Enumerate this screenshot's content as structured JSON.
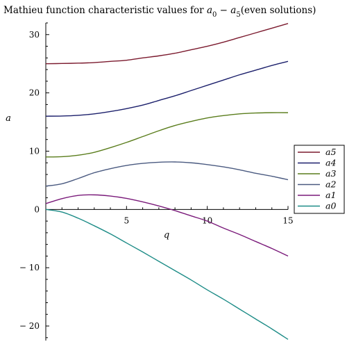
{
  "chart_data": {
    "type": "line",
    "title": {
      "prefix": "Mathieu function characteristic values for ",
      "var_a": "a",
      "sub_0": "0",
      "dash": " − ",
      "sub_5": "5",
      "suffix": "(even solutions)"
    },
    "xlabel": "q",
    "ylabel": "a",
    "xlim": [
      0,
      15
    ],
    "ylim": [
      -22.5,
      32
    ],
    "x_ticks": [
      5,
      10,
      15
    ],
    "y_ticks": [
      {
        "value": 30,
        "label": "30"
      },
      {
        "value": 20,
        "label": "20"
      },
      {
        "value": 10,
        "label": "10"
      },
      {
        "value": 0,
        "label": "0"
      },
      {
        "value": -10,
        "label": "− 10"
      },
      {
        "value": -20,
        "label": "− 20"
      }
    ],
    "grid": false,
    "legend_position": "right",
    "x": [
      0,
      1,
      2,
      3,
      4,
      5,
      6,
      7,
      8,
      9,
      10,
      11,
      12,
      13,
      14,
      15
    ],
    "series": [
      {
        "name": "a5",
        "color": "#7b1a2e",
        "values": [
          25.0,
          25.04,
          25.1,
          25.2,
          25.4,
          25.6,
          26.0,
          26.35,
          26.8,
          27.4,
          28.0,
          28.7,
          29.5,
          30.3,
          31.1,
          31.9
        ]
      },
      {
        "name": "a4",
        "color": "#1b1f6b",
        "values": [
          16.0,
          16.03,
          16.15,
          16.4,
          16.8,
          17.3,
          17.9,
          18.7,
          19.5,
          20.4,
          21.3,
          22.2,
          23.1,
          23.9,
          24.7,
          25.4
        ]
      },
      {
        "name": "a3",
        "color": "#5a7d1c",
        "values": [
          9.0,
          9.05,
          9.3,
          9.8,
          10.6,
          11.5,
          12.5,
          13.5,
          14.4,
          15.1,
          15.7,
          16.1,
          16.4,
          16.55,
          16.6,
          16.6
        ]
      },
      {
        "name": "a2",
        "color": "#4a5a80",
        "values": [
          4.0,
          4.4,
          5.3,
          6.3,
          7.0,
          7.55,
          7.9,
          8.1,
          8.15,
          8.0,
          7.7,
          7.3,
          6.8,
          6.2,
          5.7,
          5.1
        ]
      },
      {
        "name": "a1",
        "color": "#7a1a7a",
        "values": [
          1.0,
          1.85,
          2.4,
          2.5,
          2.3,
          1.9,
          1.3,
          0.6,
          -0.2,
          -1.1,
          -2.0,
          -3.2,
          -4.3,
          -5.5,
          -6.7,
          -8.0
        ]
      },
      {
        "name": "a0",
        "color": "#1d8c87",
        "values": [
          0.0,
          -0.45,
          -1.5,
          -2.8,
          -4.2,
          -5.75,
          -7.3,
          -8.9,
          -10.5,
          -12.1,
          -13.8,
          -15.4,
          -17.1,
          -18.8,
          -20.5,
          -22.3
        ]
      }
    ]
  }
}
